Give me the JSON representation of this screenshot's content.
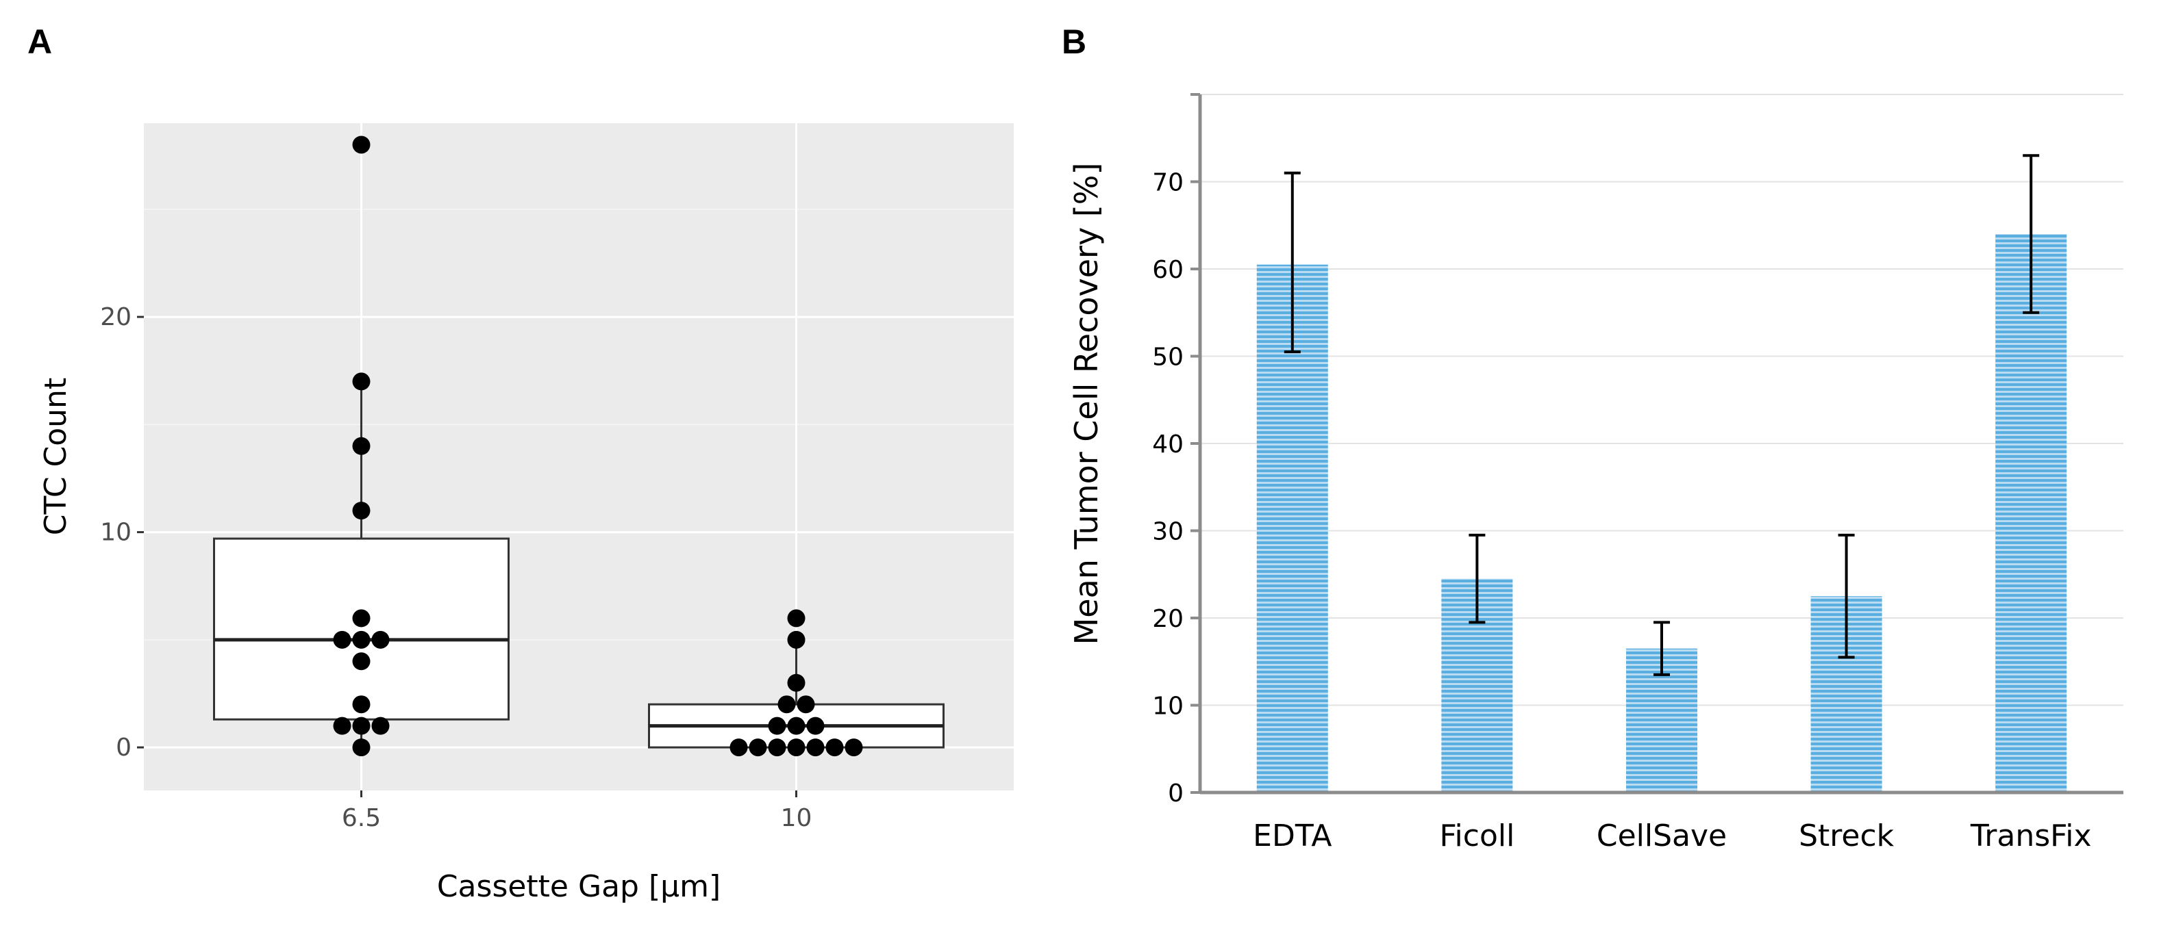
{
  "panels": {
    "a_label": "A",
    "b_label": "B"
  },
  "chart_data": [
    {
      "type": "box",
      "panel": "A",
      "xlabel": "Cassette Gap [µm]",
      "ylabel": "CTC Count",
      "categories": [
        "6.5",
        "10"
      ],
      "ylim": [
        -2,
        29
      ],
      "yticks": [
        0,
        10,
        20
      ],
      "ytick_labels": [
        "0",
        "10",
        "20"
      ],
      "background": "#ebebeb",
      "grid": true,
      "boxes": [
        {
          "category": "6.5",
          "q1": 1.3,
          "median": 5,
          "q3": 9.7,
          "whisker_low": 0,
          "whisker_high": 17
        },
        {
          "category": "10",
          "q1": 0,
          "median": 1,
          "q3": 2,
          "whisker_low": 0,
          "whisker_high": 5
        }
      ],
      "points": [
        {
          "category": "6.5",
          "values": [
            28,
            17,
            14,
            11,
            6,
            5,
            5,
            5,
            4,
            2,
            1,
            1,
            1,
            0
          ]
        },
        {
          "category": "10",
          "values": [
            6,
            5,
            3,
            2,
            2,
            1,
            1,
            1,
            0,
            0,
            0,
            0,
            0,
            0,
            0
          ]
        }
      ]
    },
    {
      "type": "bar",
      "panel": "B",
      "xlabel": "",
      "ylabel": "Mean Tumor Cell Recovery [%]",
      "categories": [
        "EDTA",
        "Ficoll",
        "CellSave",
        "Streck",
        "TransFix"
      ],
      "values": [
        60.5,
        24.5,
        16.5,
        22.5,
        64
      ],
      "error_low": [
        50.5,
        19.5,
        13.5,
        15.5,
        55
      ],
      "error_high": [
        71,
        29.5,
        19.5,
        29.5,
        73
      ],
      "ylim": [
        0,
        80
      ],
      "yticks": [
        0,
        10,
        20,
        30,
        40,
        50,
        60,
        70
      ],
      "ytick_labels": [
        "0",
        "10",
        "20",
        "30",
        "40",
        "50",
        "60",
        "70"
      ],
      "bar_color": "#5aaee0",
      "grid": true
    }
  ]
}
